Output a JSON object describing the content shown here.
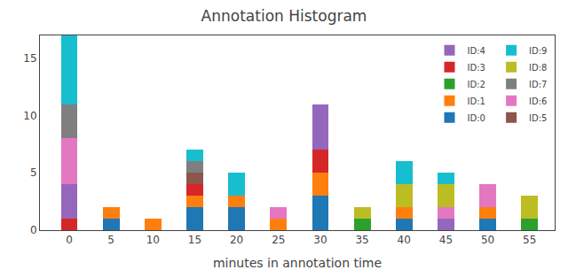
{
  "chart_data": {
    "type": "bar",
    "stacked": true,
    "title": "Annotation Histogram",
    "xlabel": "minutes in annotation time",
    "x": [
      0,
      5,
      10,
      15,
      20,
      25,
      30,
      35,
      40,
      45,
      50,
      55
    ],
    "series": [
      {
        "name": "ID:0",
        "color": "#1f77b4",
        "values": [
          0,
          1,
          0,
          2,
          2,
          0,
          3,
          0,
          1,
          0,
          1,
          0
        ]
      },
      {
        "name": "ID:1",
        "color": "#ff7f0e",
        "values": [
          0,
          1,
          1,
          1,
          1,
          1,
          2,
          0,
          1,
          0,
          1,
          0
        ]
      },
      {
        "name": "ID:2",
        "color": "#2ca02c",
        "values": [
          0,
          0,
          0,
          0,
          0,
          0,
          0,
          1,
          0,
          0,
          0,
          1
        ]
      },
      {
        "name": "ID:3",
        "color": "#d62728",
        "values": [
          1,
          0,
          0,
          1,
          0,
          0,
          2,
          0,
          0,
          0,
          0,
          0
        ]
      },
      {
        "name": "ID:4",
        "color": "#9467bd",
        "values": [
          3,
          0,
          0,
          0,
          0,
          0,
          4,
          0,
          0,
          1,
          0,
          0
        ]
      },
      {
        "name": "ID:5",
        "color": "#8c564b",
        "values": [
          0,
          0,
          0,
          1,
          0,
          0,
          0,
          0,
          0,
          0,
          0,
          0
        ]
      },
      {
        "name": "ID:6",
        "color": "#e377c2",
        "values": [
          4,
          0,
          0,
          0,
          0,
          1,
          0,
          0,
          0,
          1,
          2,
          0
        ]
      },
      {
        "name": "ID:7",
        "color": "#7f7f7f",
        "values": [
          3,
          0,
          0,
          1,
          0,
          0,
          0,
          0,
          0,
          0,
          0,
          0
        ]
      },
      {
        "name": "ID:8",
        "color": "#bcbd22",
        "values": [
          0,
          0,
          0,
          0,
          0,
          0,
          0,
          1,
          2,
          2,
          0,
          2
        ]
      },
      {
        "name": "ID:9",
        "color": "#17becf",
        "values": [
          6,
          0,
          0,
          1,
          2,
          0,
          0,
          0,
          2,
          1,
          0,
          0
        ]
      }
    ],
    "xlim": [
      -3.5,
      58
    ],
    "xticks": [
      0,
      5,
      10,
      15,
      20,
      25,
      30,
      35,
      40,
      45,
      50,
      55
    ],
    "ylim": [
      0,
      17
    ],
    "yticks": [
      0,
      5,
      10,
      15
    ],
    "grid": false,
    "legend": "upper right"
  }
}
